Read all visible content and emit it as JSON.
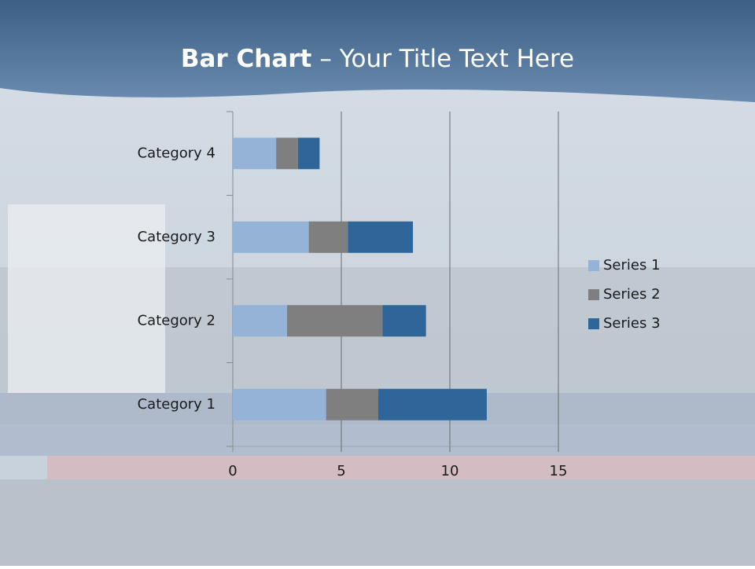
{
  "chart_data": {
    "type": "stacked-barh",
    "title_parts": [
      "Bar Chart",
      "– Your Title Text Here"
    ],
    "categories": [
      "Category 1",
      "Category 2",
      "Category 3",
      "Category 4"
    ],
    "series": [
      {
        "name": "Series 1",
        "color": "#95b3d7",
        "values": [
          4.3,
          2.5,
          3.5,
          2
        ]
      },
      {
        "name": "Series 2",
        "color": "#7f7f7f",
        "values": [
          2.4,
          4.4,
          1.8,
          1
        ]
      },
      {
        "name": "Series 3",
        "color": "#2f6699",
        "values": [
          5,
          2,
          3,
          1
        ]
      }
    ],
    "xlim": [
      0,
      15
    ],
    "xticks": [
      0,
      5,
      10,
      15
    ],
    "grid": true,
    "legend": "right"
  }
}
